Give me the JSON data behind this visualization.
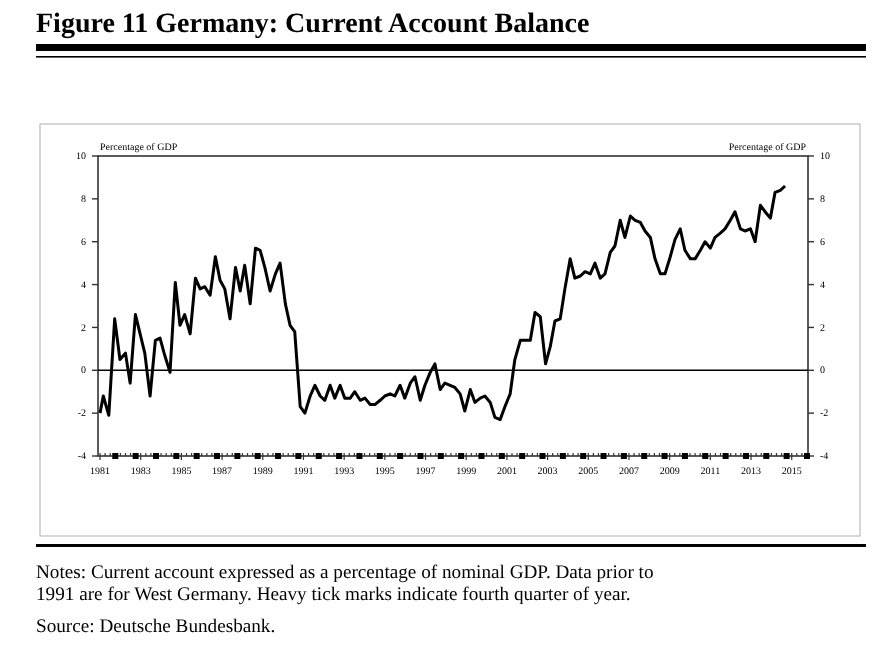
{
  "chart_data": {
    "type": "line",
    "title": "Figure 11 Germany: Current Account Balance",
    "ylabel": "Percentage of GDP",
    "y2label": "Percentage of GDP",
    "annotations": [
      "Notes: Current account expressed as a percentage of nominal GDP. Data prior to 1991 are for West Germany. Heavy tick marks indicate fourth quarter of year.",
      "Source: Deutsche Bundesbank."
    ],
    "series": [
      {
        "color": "#000000",
        "x": [
          1981.0,
          1981.16,
          1981.43,
          1981.72,
          1981.98,
          1982.25,
          1982.48,
          1982.74,
          1982.97,
          1983.2,
          1983.46,
          1983.72,
          1983.95,
          1984.18,
          1984.44,
          1984.7,
          1984.93,
          1985.16,
          1985.43,
          1985.69,
          1985.92,
          1986.15,
          1986.41,
          1986.67,
          1986.9,
          1987.13,
          1987.39,
          1987.66,
          1987.89,
          1988.11,
          1988.38,
          1988.64,
          1988.87,
          1989.1,
          1989.36,
          1989.62,
          1989.85,
          1990.11,
          1990.34,
          1990.57,
          1990.84,
          1991.07,
          1991.33,
          1991.56,
          1991.82,
          1992.05,
          1992.31,
          1992.54,
          1992.8,
          1993.03,
          1993.3,
          1993.52,
          1993.79,
          1994.02,
          1994.28,
          1994.51,
          1994.77,
          1995.0,
          1995.26,
          1995.49,
          1995.75,
          1995.98,
          1996.25,
          1996.48,
          1996.74,
          1996.97,
          1997.23,
          1997.46,
          1997.72,
          1997.95,
          1998.21,
          1998.44,
          1998.7,
          1998.93,
          1999.2,
          1999.43,
          1999.69,
          1999.92,
          2000.18,
          2000.41,
          2000.67,
          2000.9,
          2001.16,
          2001.39,
          2001.66,
          2001.89,
          2002.15,
          2002.38,
          2002.64,
          2002.9,
          2003.13,
          2003.36,
          2003.62,
          2003.85,
          2004.11,
          2004.34,
          2004.61,
          2004.84,
          2005.1,
          2005.33,
          2005.59,
          2005.82,
          2006.08,
          2006.31,
          2006.57,
          2006.8,
          2007.07,
          2007.3,
          2007.56,
          2007.79,
          2008.05,
          2008.28,
          2008.54,
          2008.77,
          2009.03,
          2009.26,
          2009.52,
          2009.75,
          2010.02,
          2010.25,
          2010.51,
          2010.74,
          2011.0,
          2011.23,
          2011.49,
          2011.72,
          2011.98,
          2012.21,
          2012.48,
          2012.7,
          2012.97,
          2013.2,
          2013.46,
          2013.69,
          2013.95,
          2014.18,
          2014.44,
          2014.67
        ],
        "values": [
          -2.0,
          -1.2,
          -2.1,
          2.4,
          0.5,
          0.8,
          -0.6,
          2.6,
          1.7,
          0.8,
          -1.2,
          1.4,
          1.5,
          0.7,
          -0.1,
          4.1,
          2.1,
          2.6,
          1.7,
          4.3,
          3.8,
          3.9,
          3.5,
          5.3,
          4.2,
          3.8,
          2.4,
          4.8,
          3.7,
          4.9,
          3.1,
          5.7,
          5.6,
          4.8,
          3.7,
          4.5,
          5.0,
          3.1,
          2.1,
          1.8,
          -1.7,
          -2.0,
          -1.2,
          -0.7,
          -1.2,
          -1.4,
          -0.7,
          -1.3,
          -0.7,
          -1.3,
          -1.3,
          -1.0,
          -1.4,
          -1.3,
          -1.6,
          -1.6,
          -1.4,
          -1.2,
          -1.1,
          -1.2,
          -0.7,
          -1.3,
          -0.6,
          -0.3,
          -1.4,
          -0.7,
          -0.1,
          0.3,
          -0.9,
          -0.6,
          -0.7,
          -0.8,
          -1.1,
          -1.9,
          -0.9,
          -1.5,
          -1.3,
          -1.2,
          -1.5,
          -2.2,
          -2.3,
          -1.7,
          -1.1,
          0.5,
          1.4,
          1.4,
          1.4,
          2.7,
          2.5,
          0.3,
          1.1,
          2.3,
          2.4,
          3.8,
          5.2,
          4.3,
          4.4,
          4.6,
          4.5,
          5.0,
          4.3,
          4.5,
          5.5,
          5.8,
          7.0,
          6.2,
          7.2,
          7.0,
          6.9,
          6.5,
          6.2,
          5.2,
          4.5,
          4.5,
          5.3,
          6.1,
          6.6,
          5.6,
          5.2,
          5.2,
          5.6,
          6.0,
          5.7,
          6.2,
          6.4,
          6.6,
          7.0,
          7.4,
          6.6,
          6.5,
          6.6,
          6.0,
          7.7,
          7.4,
          7.1,
          8.3,
          8.4,
          8.6
        ]
      }
    ],
    "xlim": [
      1980.9,
      2015.8
    ],
    "xticks": [
      1981,
      1983,
      1985,
      1987,
      1989,
      1991,
      1993,
      1995,
      1997,
      1999,
      2001,
      2003,
      2005,
      2007,
      2009,
      2011,
      2013,
      2015
    ],
    "ylim": [
      -4,
      10
    ],
    "yticks": [
      -4,
      -2,
      0,
      2,
      4,
      6,
      8,
      10
    ],
    "y2lim": [
      -4,
      10
    ],
    "y2ticks": [
      -4,
      -2,
      0,
      2,
      4,
      6,
      8,
      10
    ],
    "ref_lines": [
      {
        "axis": "y",
        "value": 0,
        "color": "#000000"
      }
    ],
    "grid": false,
    "line_style": "solid",
    "marker": "none"
  }
}
